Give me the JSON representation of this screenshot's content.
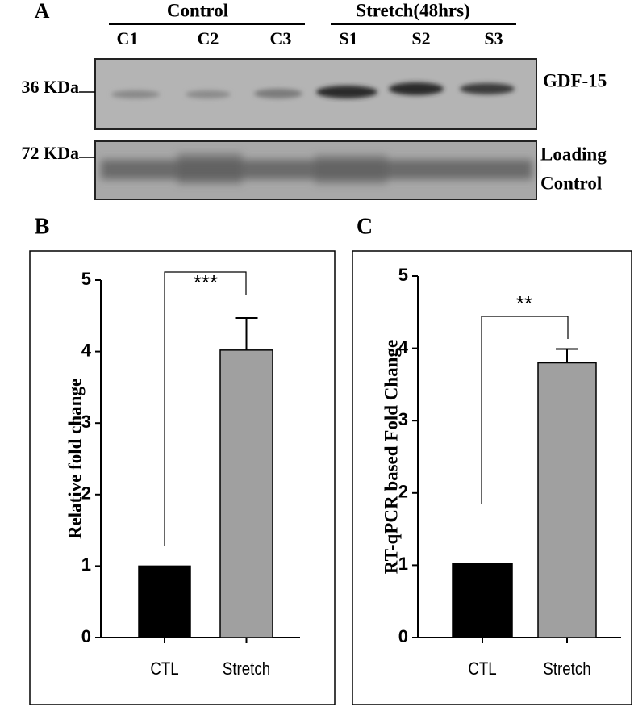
{
  "blot": {
    "panel_label": "A",
    "groups": [
      "Control",
      "Stretch(48hrs)"
    ],
    "lanes": [
      "C1",
      "C2",
      "C3",
      "S1",
      "S2",
      "S3"
    ],
    "markers": [
      "36 KDa",
      "72 KDa"
    ],
    "targets": [
      [
        "GDF-15"
      ],
      [
        "Loading",
        "Control"
      ]
    ]
  },
  "chart_data": [
    {
      "type": "bar",
      "panel_label": "B",
      "ylabel": "Relative fold change",
      "categories": [
        "CTL",
        "Stretch"
      ],
      "values": [
        1,
        4.02
      ],
      "errors": [
        0,
        0.45
      ],
      "colors": [
        "#000000",
        "#a0a0a0"
      ],
      "ylim": [
        0,
        5
      ],
      "yticks": [
        0,
        1,
        2,
        3,
        4,
        5
      ],
      "annotation": "***"
    },
    {
      "type": "bar",
      "panel_label": "C",
      "ylabel": "RT-qPCR based Fold Change",
      "categories": [
        "CTL",
        "Stretch"
      ],
      "values": [
        1.02,
        3.8
      ],
      "errors": [
        0,
        0.19
      ],
      "colors": [
        "#000000",
        "#a0a0a0"
      ],
      "ylim": [
        0,
        5
      ],
      "yticks": [
        0,
        1,
        2,
        3,
        4,
        5
      ],
      "annotation": "**"
    }
  ]
}
